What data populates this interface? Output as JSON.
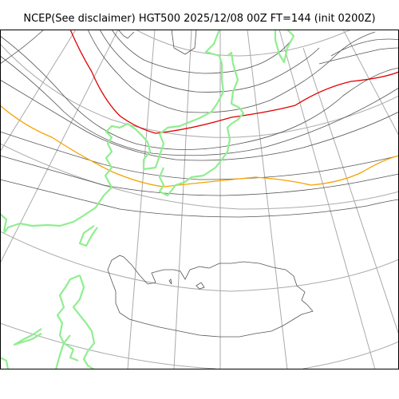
{
  "title": "NCEP(See disclaimer) HGT500 2025/12/08 00Z FT=144 (init 0200Z)",
  "colors": {
    "coastline_green": "#90ee90",
    "coastline_dark": "#555555",
    "contour_gray": "#555555",
    "graticule": "#aaaaaa",
    "highlight_red": "#e00000",
    "highlight_orange": "#f5a300",
    "frame": "#000000"
  }
}
